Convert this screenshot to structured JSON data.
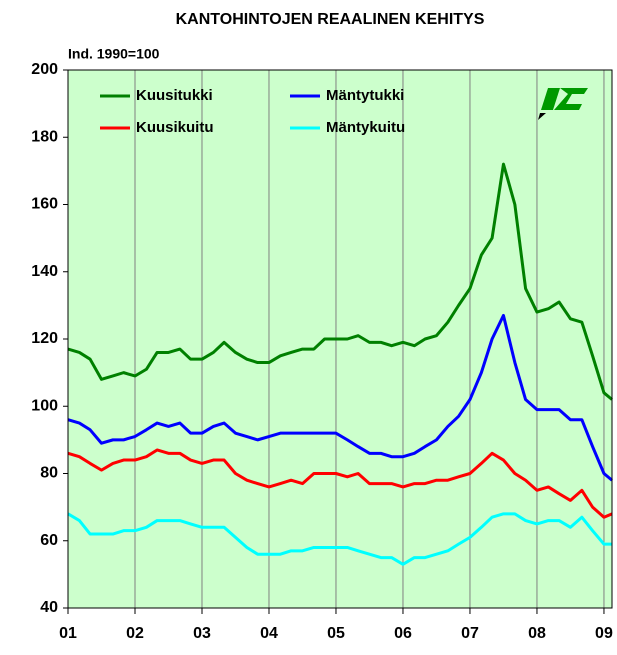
{
  "chart_data": {
    "type": "line",
    "title": "KANTOHINTOJEN REAALINEN KEHITYS",
    "y_label": "Ind. 1990=100",
    "x": [
      2001,
      2001.17,
      2001.33,
      2001.5,
      2001.67,
      2001.83,
      2002,
      2002.17,
      2002.33,
      2002.5,
      2002.67,
      2002.83,
      2003,
      2003.17,
      2003.33,
      2003.5,
      2003.67,
      2003.83,
      2004,
      2004.17,
      2004.33,
      2004.5,
      2004.67,
      2004.83,
      2005,
      2005.17,
      2005.33,
      2005.5,
      2005.67,
      2005.83,
      2006,
      2006.17,
      2006.33,
      2006.5,
      2006.67,
      2006.83,
      2007,
      2007.17,
      2007.33,
      2007.5,
      2007.67,
      2007.83,
      2008,
      2008.17,
      2008.33,
      2008.5,
      2008.67,
      2008.83,
      2009,
      2009.12
    ],
    "series": [
      {
        "name": "Kuusitukki",
        "color": "#008000",
        "values": [
          117,
          116,
          114,
          108,
          109,
          110,
          109,
          111,
          116,
          116,
          117,
          114,
          114,
          116,
          119,
          116,
          114,
          113,
          113,
          115,
          116,
          117,
          117,
          120,
          120,
          120,
          121,
          119,
          119,
          118,
          119,
          118,
          120,
          121,
          125,
          130,
          135,
          145,
          150,
          172,
          160,
          135,
          128,
          129,
          131,
          126,
          125,
          115,
          104,
          102
        ]
      },
      {
        "name": "Mäntytukki",
        "color": "#0000ff",
        "values": [
          96,
          95,
          93,
          89,
          90,
          90,
          91,
          93,
          95,
          94,
          95,
          92,
          92,
          94,
          95,
          92,
          91,
          90,
          91,
          92,
          92,
          92,
          92,
          92,
          92,
          90,
          88,
          86,
          86,
          85,
          85,
          86,
          88,
          90,
          94,
          97,
          102,
          110,
          120,
          127,
          113,
          102,
          99,
          99,
          99,
          96,
          96,
          88,
          80,
          78
        ]
      },
      {
        "name": "Kuusikuitu",
        "color": "#ff0000",
        "values": [
          86,
          85,
          83,
          81,
          83,
          84,
          84,
          85,
          87,
          86,
          86,
          84,
          83,
          84,
          84,
          80,
          78,
          77,
          76,
          77,
          78,
          77,
          80,
          80,
          80,
          79,
          80,
          77,
          77,
          77,
          76,
          77,
          77,
          78,
          78,
          79,
          80,
          83,
          86,
          84,
          80,
          78,
          75,
          76,
          74,
          72,
          75,
          70,
          67,
          68
        ]
      },
      {
        "name": "Mäntykuitu",
        "color": "#00ffff",
        "values": [
          68,
          66,
          62,
          62,
          62,
          63,
          63,
          64,
          66,
          66,
          66,
          65,
          64,
          64,
          64,
          61,
          58,
          56,
          56,
          56,
          57,
          57,
          58,
          58,
          58,
          58,
          57,
          56,
          55,
          55,
          53,
          55,
          55,
          56,
          57,
          59,
          61,
          64,
          67,
          68,
          68,
          66,
          65,
          66,
          66,
          64,
          67,
          63,
          59,
          59
        ]
      }
    ],
    "xlim": [
      2001,
      2009.12
    ],
    "xticks": [
      {
        "value": 2001,
        "label": "01"
      },
      {
        "value": 2002,
        "label": "02"
      },
      {
        "value": 2003,
        "label": "03"
      },
      {
        "value": 2004,
        "label": "04"
      },
      {
        "value": 2005,
        "label": "05"
      },
      {
        "value": 2006,
        "label": "06"
      },
      {
        "value": 2007,
        "label": "07"
      },
      {
        "value": 2008,
        "label": "08"
      },
      {
        "value": 2009,
        "label": "09"
      }
    ],
    "ylim": [
      40,
      200
    ],
    "yticks": [
      40,
      60,
      80,
      100,
      120,
      140,
      160,
      180,
      200
    ],
    "grid": true,
    "legend": "top-left",
    "background": "#ccffcc"
  }
}
